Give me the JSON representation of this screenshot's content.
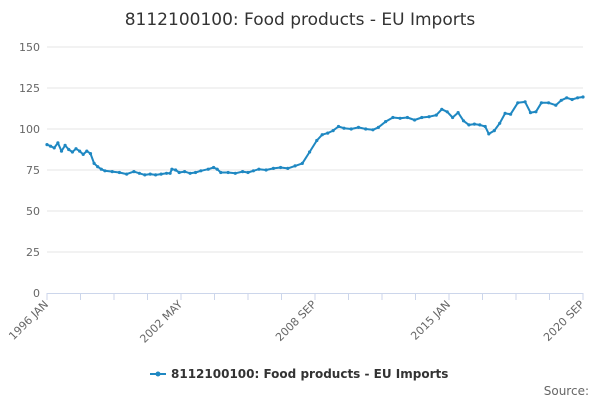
{
  "chart_data": {
    "type": "line",
    "title": "8112100100: Food products - EU Imports",
    "xlabel": "",
    "ylabel": "",
    "ylim": [
      0,
      150
    ],
    "yticks": [
      0,
      25,
      50,
      75,
      100,
      125,
      150
    ],
    "xlim": [
      "1996-01",
      "2020-09"
    ],
    "xticks": [
      "1996 JAN",
      "2002 MAY",
      "2008 SEP",
      "2015 JAN",
      "2020 SEP"
    ],
    "grid": true,
    "legend": "bottom-center",
    "color": "#1f88c2",
    "series": [
      {
        "name": "8112100100: Food products - EU Imports",
        "points": [
          [
            "1996-01",
            90.5
          ],
          [
            "1996-03",
            89.5
          ],
          [
            "1996-05",
            88.5
          ],
          [
            "1996-07",
            91.5
          ],
          [
            "1996-09",
            86.5
          ],
          [
            "1996-11",
            90.0
          ],
          [
            "1997-01",
            87.5
          ],
          [
            "1997-03",
            86.0
          ],
          [
            "1997-05",
            88.0
          ],
          [
            "1997-07",
            86.5
          ],
          [
            "1997-09",
            84.5
          ],
          [
            "1997-11",
            86.5
          ],
          [
            "1998-01",
            85.0
          ],
          [
            "1998-03",
            79.0
          ],
          [
            "1998-05",
            77.0
          ],
          [
            "1998-07",
            75.5
          ],
          [
            "1998-09",
            74.5
          ],
          [
            "1999-01",
            74.0
          ],
          [
            "1999-05",
            73.5
          ],
          [
            "1999-09",
            72.5
          ],
          [
            "2000-01",
            74.0
          ],
          [
            "2000-04",
            73.0
          ],
          [
            "2000-07",
            72.0
          ],
          [
            "2000-10",
            72.5
          ],
          [
            "2001-01",
            72.0
          ],
          [
            "2001-04",
            72.5
          ],
          [
            "2001-07",
            73.0
          ],
          [
            "2001-09",
            73.0
          ],
          [
            "2001-10",
            75.5
          ],
          [
            "2001-12",
            75.0
          ],
          [
            "2002-02",
            73.5
          ],
          [
            "2002-05",
            74.0
          ],
          [
            "2002-08",
            73.0
          ],
          [
            "2002-11",
            73.5
          ],
          [
            "2003-02",
            74.5
          ],
          [
            "2003-06",
            75.5
          ],
          [
            "2003-09",
            76.5
          ],
          [
            "2003-11",
            75.5
          ],
          [
            "2004-01",
            73.5
          ],
          [
            "2004-05",
            73.5
          ],
          [
            "2004-09",
            73.0
          ],
          [
            "2005-01",
            74.0
          ],
          [
            "2005-04",
            73.5
          ],
          [
            "2005-07",
            74.5
          ],
          [
            "2005-10",
            75.5
          ],
          [
            "2006-02",
            75.0
          ],
          [
            "2006-06",
            76.0
          ],
          [
            "2006-10",
            76.5
          ],
          [
            "2007-02",
            76.0
          ],
          [
            "2007-06",
            77.5
          ],
          [
            "2007-10",
            79.0
          ],
          [
            "2008-02",
            86.0
          ],
          [
            "2008-06",
            93.0
          ],
          [
            "2008-09",
            96.5
          ],
          [
            "2008-12",
            97.5
          ],
          [
            "2009-03",
            99.0
          ],
          [
            "2009-06",
            101.5
          ],
          [
            "2009-09",
            100.5
          ],
          [
            "2010-01",
            100.0
          ],
          [
            "2010-05",
            101.0
          ],
          [
            "2010-09",
            100.0
          ],
          [
            "2011-01",
            99.5
          ],
          [
            "2011-04",
            101.0
          ],
          [
            "2011-08",
            104.5
          ],
          [
            "2011-12",
            107.0
          ],
          [
            "2012-04",
            106.5
          ],
          [
            "2012-08",
            107.0
          ],
          [
            "2012-12",
            105.5
          ],
          [
            "2013-04",
            107.0
          ],
          [
            "2013-08",
            107.5
          ],
          [
            "2013-12",
            108.5
          ],
          [
            "2014-03",
            112.0
          ],
          [
            "2014-06",
            110.5
          ],
          [
            "2014-09",
            107.0
          ],
          [
            "2014-12",
            110.0
          ],
          [
            "2015-03",
            105.0
          ],
          [
            "2015-06",
            102.5
          ],
          [
            "2015-09",
            103.0
          ],
          [
            "2015-12",
            102.5
          ],
          [
            "2016-03",
            101.5
          ],
          [
            "2016-05",
            97.0
          ],
          [
            "2016-08",
            99.0
          ],
          [
            "2016-11",
            103.5
          ],
          [
            "2017-02",
            109.5
          ],
          [
            "2017-05",
            109.0
          ],
          [
            "2017-09",
            116.0
          ],
          [
            "2018-01",
            116.5
          ],
          [
            "2018-04",
            110.0
          ],
          [
            "2018-07",
            110.5
          ],
          [
            "2018-10",
            116.0
          ],
          [
            "2019-02",
            116.0
          ],
          [
            "2019-06",
            114.5
          ],
          [
            "2019-09",
            117.5
          ],
          [
            "2019-12",
            119.0
          ],
          [
            "2020-03",
            118.0
          ],
          [
            "2020-06",
            119.0
          ],
          [
            "2020-09",
            119.5
          ]
        ]
      }
    ],
    "credits": "Source:"
  }
}
